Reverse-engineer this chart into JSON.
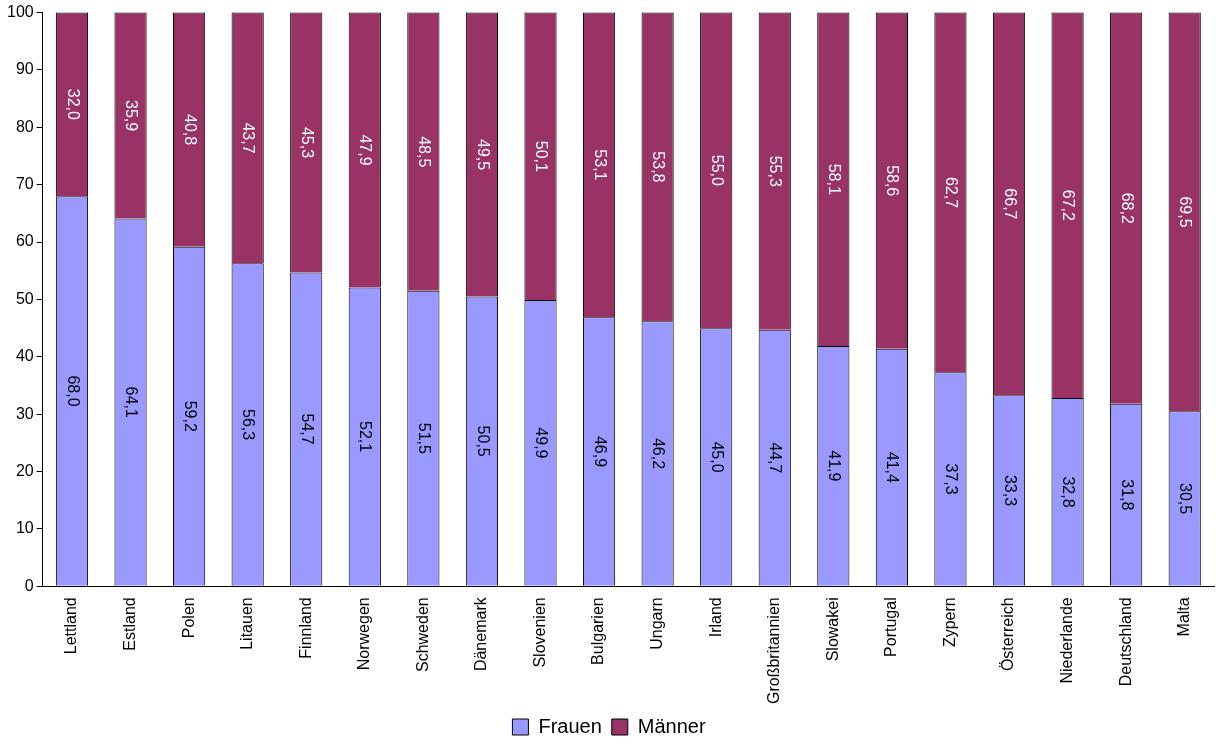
{
  "chart_data": {
    "type": "bar",
    "stacked": true,
    "categories": [
      "Lettland",
      "Estland",
      "Polen",
      "Litauen",
      "Finnland",
      "Norwegen",
      "Schweden",
      "Dänemark",
      "Slovenien",
      "Bulgarien",
      "Ungarn",
      "Irland",
      "Großbritannien",
      "Slowakei",
      "Portugal",
      "Zypern",
      "Österreich",
      "Niederlande",
      "Deutschland",
      "Malta"
    ],
    "series": [
      {
        "name": "Frauen",
        "color": "#9999ff",
        "values": [
          68.0,
          64.1,
          59.2,
          56.3,
          54.7,
          52.1,
          51.5,
          50.5,
          49.9,
          46.9,
          46.2,
          45.0,
          44.7,
          41.9,
          41.4,
          37.3,
          33.3,
          32.8,
          31.8,
          30.5
        ],
        "value_labels": [
          "68,0",
          "64,1",
          "59,2",
          "56,3",
          "54,7",
          "52,1",
          "51,5",
          "50,5",
          "49,9",
          "46,9",
          "46,2",
          "45,0",
          "44,7",
          "41,9",
          "41,4",
          "37,3",
          "33,3",
          "32,8",
          "31,8",
          "30,5"
        ]
      },
      {
        "name": "Männer",
        "color": "#993366",
        "values": [
          32.0,
          35.9,
          40.8,
          43.7,
          45.3,
          47.9,
          48.5,
          49.5,
          50.1,
          53.1,
          53.8,
          55.0,
          55.3,
          58.1,
          58.6,
          62.7,
          66.7,
          67.2,
          68.2,
          69.5
        ],
        "value_labels": [
          "32,0",
          "35,9",
          "40,8",
          "43,7",
          "45,3",
          "47,9",
          "48,5",
          "49,5",
          "50,1",
          "53,1",
          "53,8",
          "55,0",
          "55,3",
          "58,1",
          "58,6",
          "62,7",
          "66,7",
          "67,2",
          "68,2",
          "69,5"
        ]
      }
    ],
    "ylim": [
      0,
      100
    ],
    "yticks": [
      0,
      10,
      20,
      30,
      40,
      50,
      60,
      70,
      80,
      90,
      100
    ],
    "grid": false,
    "legend": "bottom"
  }
}
